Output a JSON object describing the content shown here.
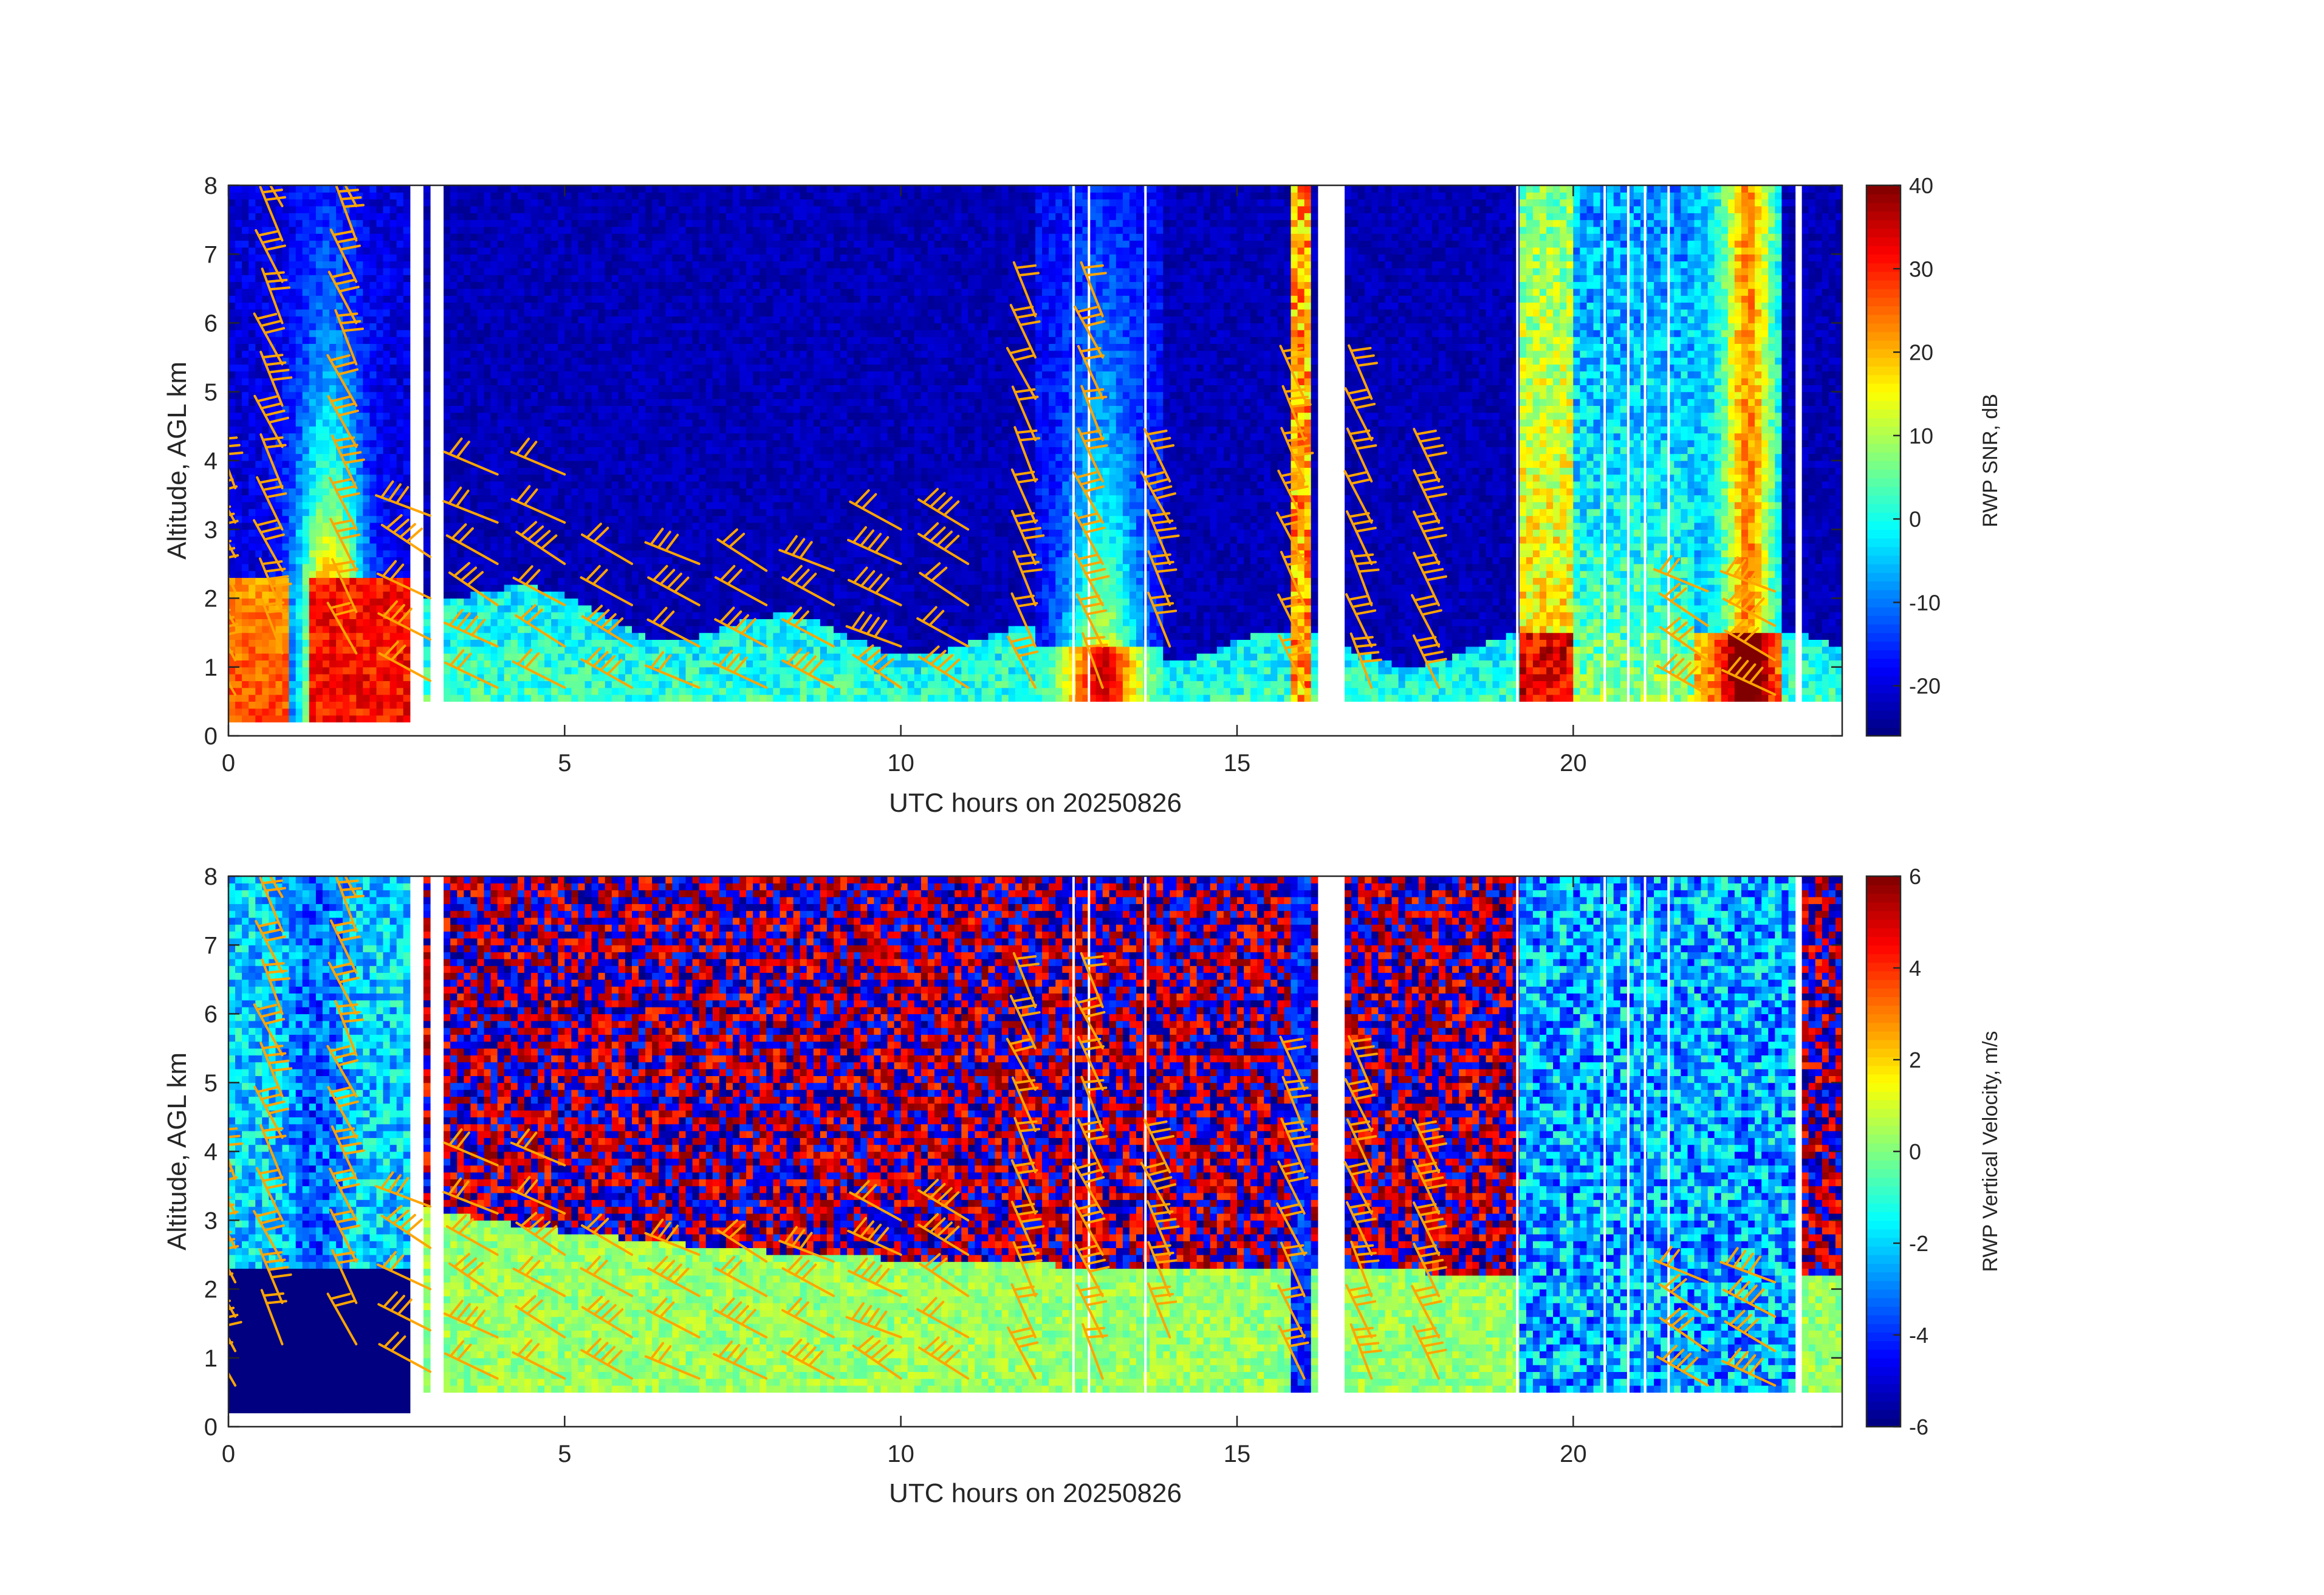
{
  "figure": {
    "panels": [
      {
        "id": "snr",
        "xlabel": "UTC hours on 20250826",
        "ylabel": "Altitude, AGL km",
        "colorbar_label": "RWP SNR, dB",
        "clim": [
          -26,
          40
        ],
        "colorbar_ticks": [
          "-20",
          "-10",
          "0",
          "10",
          "20",
          "30",
          "40"
        ],
        "colorbar_tick_values": [
          -20,
          -10,
          0,
          10,
          20,
          30,
          40
        ]
      },
      {
        "id": "vvel",
        "xlabel": "UTC hours on 20250826",
        "ylabel": "Altitude, AGL km",
        "colorbar_label": "RWP Vertical Velocity, m/s",
        "clim": [
          -6,
          6
        ],
        "colorbar_ticks": [
          "-6",
          "-4",
          "-2",
          "0",
          "2",
          "4",
          "6"
        ],
        "colorbar_tick_values": [
          -6,
          -4,
          -2,
          0,
          2,
          4,
          6
        ]
      }
    ],
    "x_ticks": [
      "0",
      "5",
      "10",
      "15",
      "20"
    ],
    "x_tick_values": [
      0,
      5,
      10,
      15,
      20
    ],
    "y_ticks": [
      "0",
      "1",
      "2",
      "3",
      "4",
      "5",
      "6",
      "7",
      "8"
    ],
    "y_tick_values": [
      0,
      1,
      2,
      3,
      4,
      5,
      6,
      7,
      8
    ],
    "colormap": "jet",
    "barb_color": "#FFA500"
  },
  "chart_data": [
    {
      "type": "heatmap",
      "xlabel": "UTC hours on 20250826",
      "ylabel": "Altitude, AGL km",
      "colorbar_label": "RWP SNR, dB",
      "xlim": [
        0,
        24
      ],
      "ylim": [
        0,
        8
      ],
      "clim": [
        -26,
        40
      ],
      "data_gaps_hours": [
        [
          2.75,
          2.95
        ],
        [
          3.05,
          3.25
        ],
        [
          16.2,
          16.6
        ],
        [
          23.35,
          23.45
        ]
      ],
      "high_mode_top_km": 8.0,
      "low_mode_range_km": [
        0.25,
        2.3
      ],
      "regions": [
        {
          "x": [
            0.0,
            0.9
          ],
          "y": [
            0.25,
            2.3
          ],
          "snr_db": 25
        },
        {
          "x": [
            1.2,
            2.7
          ],
          "y": [
            0.25,
            2.3
          ],
          "snr_db": 32
        },
        {
          "x": [
            0.6,
            2.5
          ],
          "y": [
            2.3,
            8.0
          ],
          "snr_db": 5
        },
        {
          "x": [
            3.3,
            12.5
          ],
          "y": [
            0.5,
            1.3
          ],
          "snr_db": 0
        },
        {
          "x": [
            3.3,
            12.5
          ],
          "y": [
            1.3,
            8.0
          ],
          "snr_db": -22
        },
        {
          "x": [
            15.8,
            16.1
          ],
          "y": [
            0.5,
            8.0
          ],
          "snr_db": 18
        },
        {
          "x": [
            19.2,
            20.0
          ],
          "y": [
            0.25,
            8.0
          ],
          "snr_db": 20
        },
        {
          "x": [
            21.8,
            23.1
          ],
          "y": [
            0.25,
            8.0
          ],
          "snr_db": 12
        }
      ]
    },
    {
      "type": "heatmap",
      "xlabel": "UTC hours on 20250826",
      "ylabel": "Altitude, AGL km",
      "colorbar_label": "RWP Vertical Velocity, m/s",
      "xlim": [
        0,
        24
      ],
      "ylim": [
        0,
        8
      ],
      "clim": [
        -6,
        6
      ],
      "data_gaps_hours": [
        [
          2.75,
          2.95
        ],
        [
          3.05,
          3.25
        ],
        [
          16.2,
          16.6
        ],
        [
          23.35,
          23.45
        ]
      ],
      "regions": [
        {
          "x": [
            0.0,
            2.7
          ],
          "y": [
            0.25,
            2.3
          ],
          "w_ms": -6
        },
        {
          "x": [
            3.3,
            15.8
          ],
          "y": [
            0.5,
            2.5
          ],
          "w_ms": 0.5
        },
        {
          "x": [
            3.3,
            15.8
          ],
          "y": [
            2.5,
            8.0
          ],
          "w_ms": "noise"
        },
        {
          "x": [
            19.2,
            23.3
          ],
          "y": [
            0.25,
            8.0
          ],
          "w_ms": -3
        }
      ]
    }
  ]
}
